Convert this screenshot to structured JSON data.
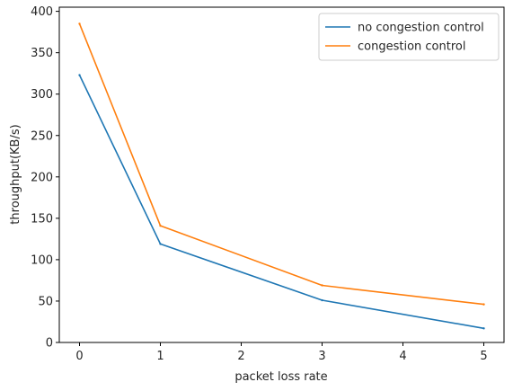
{
  "chart_data": {
    "type": "line",
    "title": "",
    "xlabel": "packet loss rate",
    "ylabel": "throughput(KB/s)",
    "x": [
      0,
      1,
      3,
      5
    ],
    "xlim": [
      -0.25,
      5.25
    ],
    "ylim": [
      0,
      405
    ],
    "xticks": [
      0,
      1,
      2,
      3,
      4,
      5
    ],
    "yticks": [
      0,
      50,
      100,
      150,
      200,
      250,
      300,
      350,
      400
    ],
    "grid": false,
    "legend_position": "top-right",
    "series": [
      {
        "name": "no congestion control",
        "color": "#1f77b4",
        "values": [
          323,
          119,
          51,
          17
        ]
      },
      {
        "name": "congestion control",
        "color": "#ff7f0e",
        "values": [
          385,
          141,
          69,
          46
        ]
      }
    ]
  }
}
